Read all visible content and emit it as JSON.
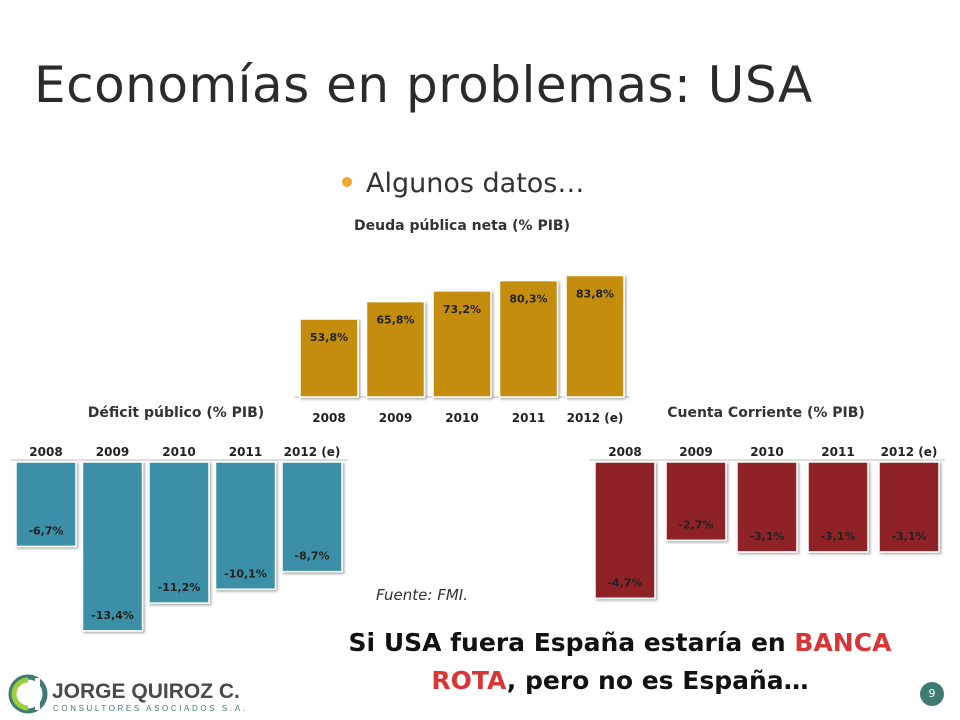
{
  "slide": {
    "title": "Economías en problemas: USA",
    "bullet": "Algunos datos…",
    "source": "Fuente: FMI.",
    "conclusion": {
      "part1": "Si USA fuera España estaría en ",
      "highlight1": "BANCA",
      "highlight2": "ROTA",
      "part2": ", pero no es España…"
    },
    "page_number": "9",
    "logo": {
      "name": "JORGE QUIROZ C.",
      "subtitle": "CONSULTORES ASOCIADOS S.A."
    },
    "colors": {
      "debt": "#c58d0b",
      "deficit": "#3a90a7",
      "current_account": "#8e2226",
      "bullet": "#f0a830",
      "highlight": "#d93535",
      "page_badge": "#3f7b73"
    }
  },
  "chart_data": [
    {
      "type": "bar",
      "title": "Deuda pública neta (% PIB)",
      "categories": [
        "2008",
        "2009",
        "2010",
        "2011",
        "2012 (e)"
      ],
      "values": [
        53.8,
        65.8,
        73.2,
        80.3,
        83.8
      ],
      "labels": [
        "53,8%",
        "65,8%",
        "73,2%",
        "80,3%",
        "83,8%"
      ],
      "color": "#c58d0b"
    },
    {
      "type": "bar",
      "title": "Déficit público (% PIB)",
      "categories": [
        "2008",
        "2009",
        "2010",
        "2011",
        "2012 (e)"
      ],
      "values": [
        -6.7,
        -13.4,
        -11.2,
        -10.1,
        -8.7
      ],
      "labels": [
        "-6,7%",
        "-13,4%",
        "-11,2%",
        "-10,1%",
        "-8,7%"
      ],
      "color": "#3a90a7"
    },
    {
      "type": "bar",
      "title": "Cuenta Corriente (% PIB)",
      "categories": [
        "2008",
        "2009",
        "2010",
        "2011",
        "2012 (e)"
      ],
      "values": [
        -4.7,
        -2.7,
        -3.1,
        -3.1,
        -3.1
      ],
      "labels": [
        "-4,7%",
        "-2,7%",
        "-3,1%",
        "-3,1%",
        "-3,1%"
      ],
      "color": "#8e2226"
    }
  ]
}
